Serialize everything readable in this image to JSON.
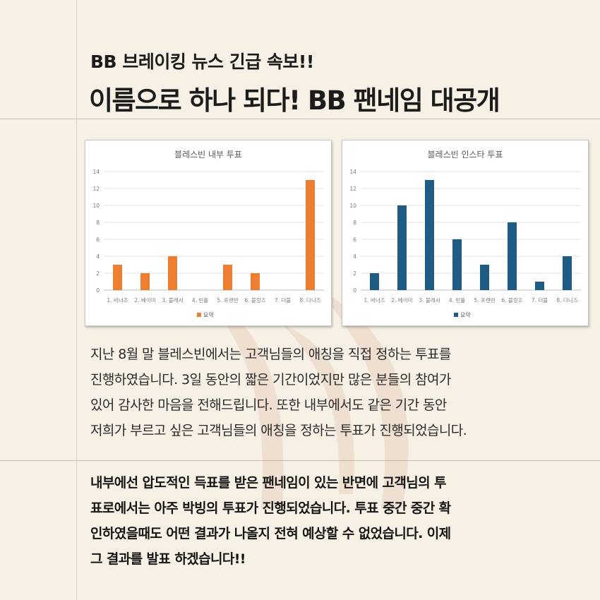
{
  "header": {
    "subtitle": "BB 브레이킹 뉴스 긴급 속보!!",
    "title": "이름으로 하나 되다! BB 팬네임 대공개"
  },
  "colors": {
    "orange": "#ed7d31",
    "blue": "#1f5c85",
    "background": "#f6f1e4"
  },
  "chart_data": [
    {
      "type": "bar",
      "title": "블레스빈 내부 투표",
      "categories": [
        "1. 비너즈",
        "2. 베이미",
        "3. 블레서",
        "4. 빈플",
        "5. 프렌빈",
        "6. 블링즈",
        "7. 더블",
        "8. 다니즈"
      ],
      "series": [
        {
          "name": "요약",
          "values": [
            3,
            2,
            4,
            0,
            3,
            2,
            0,
            13
          ]
        }
      ],
      "ylim": [
        0,
        14
      ],
      "yticks": [
        "0",
        "2",
        "4",
        "6",
        "8",
        "10",
        "12",
        "14"
      ],
      "grid": true,
      "legend": "bottom",
      "color": "#ed7d31"
    },
    {
      "type": "bar",
      "title": "블레스빈 인스타 투표",
      "categories": [
        "1. 비너즈",
        "2. 베이미",
        "3. 블레서",
        "4. 빈플",
        "5. 프렌빈",
        "6. 블링즈",
        "7. 더블",
        "8. 다니즈"
      ],
      "series": [
        {
          "name": "요약",
          "values": [
            2,
            10,
            13,
            6,
            3,
            8,
            1,
            4
          ]
        }
      ],
      "ylim": [
        0,
        14
      ],
      "yticks": [
        "0",
        "2",
        "4",
        "6",
        "8",
        "10",
        "12",
        "14"
      ],
      "grid": true,
      "legend": "bottom",
      "color": "#1f5c85"
    }
  ],
  "body": {
    "paragraph1": [
      "지난 8월 말 블레스빈에서는 고객님들의 애칭을 직접 정하는 투표를",
      "진행하였습니다. 3일 동안의 짧은 기간이었지만 많은 분들의 참여가",
      "있어 감사한 마음을 전해드립니다. 또한 내부에서도 같은 기간 동안",
      "저희가 부르고 싶은 고객님들의 애칭을 정하는 투표가 진행되었습니다."
    ],
    "paragraph2": [
      "내부에선 압도적인 득표를 받은 팬네임이 있는 반면에 고객님의 투",
      "표로에서는 아주 박빙의 투표가 진행되었습니다. 투표 중간 중간 확",
      "인하였을때도 어떤 결과가 나올지 전혀 예상할 수 없었습니다. 이제",
      "그 결과를 발표 하겠습니다!!"
    ]
  }
}
